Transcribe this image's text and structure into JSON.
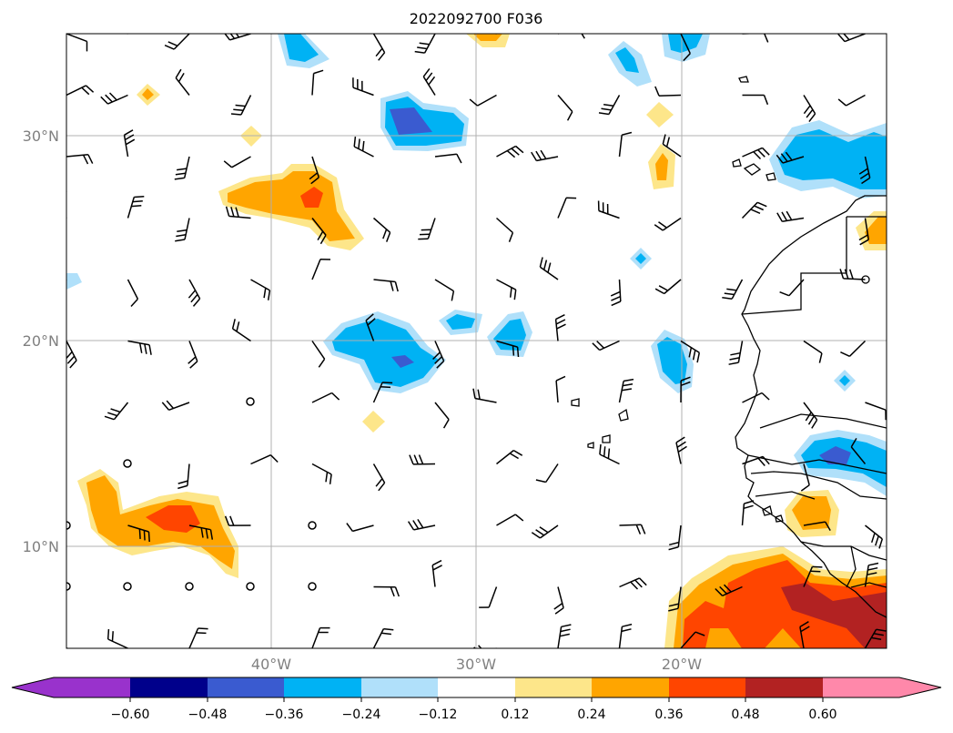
{
  "title": "2022092700 F036",
  "latitude_labels": [
    "30°N",
    "20°N",
    "10°N"
  ],
  "longitude_labels": [
    "40°W",
    "30°W",
    "20°W"
  ],
  "colorbar": {
    "colors": [
      "#9932cc",
      "#00008b",
      "#3a5bd0",
      "#00b2f4",
      "#b0e0fa",
      "#ffffff",
      "#fde68a",
      "#ffa500",
      "#ff4500",
      "#b22222",
      "#ff88aa"
    ],
    "tick_labels": [
      "−0.60",
      "−0.48",
      "−0.36",
      "−0.24",
      "−0.12",
      "0.12",
      "0.24",
      "0.36",
      "0.48",
      "0.60"
    ]
  },
  "palette": {
    "grid": "#b0b0b0",
    "coast": "#000000",
    "lightblue": "#b0e0fa",
    "blue": "#00b2f4",
    "darkblue": "#3a5bd0",
    "yellow": "#fde68a",
    "orange": "#ffa500",
    "redorange": "#ff4500",
    "darkred": "#b22222"
  }
}
